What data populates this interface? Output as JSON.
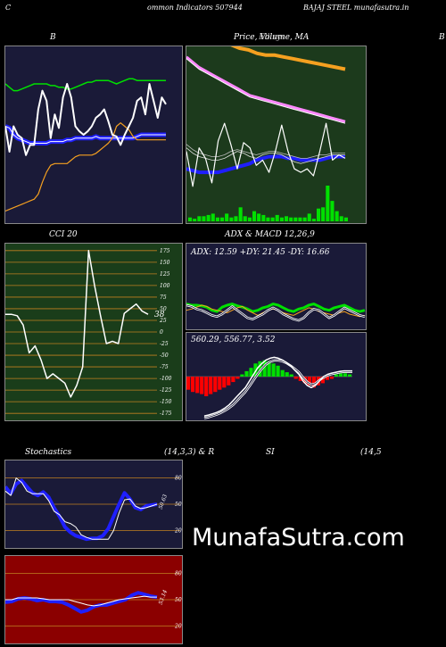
{
  "header": {
    "left": "C",
    "center": "ommon Indicators 507944",
    "right": "BAJAJ STEEL munafasutra.in"
  },
  "titles": {
    "bb": "B",
    "price": "Price,  Volume, MA",
    "price_overlap": "Ellisys",
    "right_edge": "B",
    "cci": "CCI 20",
    "adx_macd": "ADX  & MACD 12,26,9",
    "stoch_left": "Stochastics",
    "stoch_params": "(14,3,3) & R",
    "rsi": "SI",
    "rsi_params": "(14,5"
  },
  "watermark": "MunafaSutra.com",
  "colors": {
    "navy": "#1a1a38",
    "green_panel": "#1c3a1c",
    "cci_bg": "#1a3d1a",
    "rsi_bg": "#8b0000",
    "blue": "#1f1fff",
    "lime": "#00e000",
    "orange": "#f5a020",
    "pink": "#ff88ff",
    "red": "#ff0000",
    "gridline": "#c08020"
  },
  "chart_data": [
    {
      "id": "bollinger",
      "type": "line",
      "title": "B",
      "ylim": [
        0,
        100
      ],
      "series": [
        {
          "values": [
            55,
            54,
            50,
            48,
            47,
            46,
            45,
            45,
            45,
            45,
            45,
            46,
            46,
            46,
            46,
            47,
            47,
            48,
            48,
            48,
            48,
            48,
            49,
            48,
            48,
            48,
            48,
            48,
            48,
            48,
            48,
            48,
            49,
            50,
            50,
            50,
            50,
            50,
            50,
            50
          ]
        },
        {
          "values": [
            80,
            78,
            76,
            76,
            77,
            78,
            79,
            80,
            80,
            80,
            80,
            79,
            79,
            78,
            78,
            77,
            77,
            78,
            79,
            80,
            81,
            81,
            82,
            82,
            82,
            82,
            81,
            80,
            81,
            82,
            83,
            83,
            82,
            82,
            82,
            82,
            82,
            82,
            82,
            82
          ]
        },
        {
          "values": [
            5,
            6,
            7,
            8,
            9,
            10,
            11,
            12,
            15,
            22,
            28,
            32,
            33,
            33,
            33,
            33,
            35,
            37,
            38,
            38,
            38,
            38,
            39,
            41,
            43,
            45,
            48,
            55,
            57,
            55,
            53,
            49,
            47,
            47,
            47,
            47,
            47,
            47,
            47,
            47
          ]
        },
        {
          "values": [
            55,
            40,
            55,
            50,
            48,
            38,
            44,
            44,
            65,
            76,
            70,
            48,
            62,
            54,
            72,
            80,
            72,
            55,
            52,
            50,
            52,
            55,
            60,
            62,
            65,
            58,
            50,
            49,
            44,
            50,
            55,
            60,
            70,
            72,
            62,
            80,
            70,
            60,
            72,
            68
          ]
        }
      ]
    },
    {
      "id": "price_volume",
      "type": "line",
      "title": "Price,  Volume, MA",
      "ylim": [
        0,
        100
      ],
      "series": [
        {
          "values": [
            105,
            103,
            101,
            99,
            98,
            96,
            95,
            95,
            94,
            93,
            92,
            91,
            90,
            89,
            88,
            87
          ]
        },
        {
          "values": [
            94,
            91,
            88,
            86,
            84,
            82,
            80,
            78,
            76,
            74,
            72,
            71,
            70,
            69,
            68,
            67,
            66,
            65,
            64,
            63,
            62,
            61,
            60,
            59,
            58,
            57
          ]
        },
        {
          "values": [
            93,
            90,
            87,
            85,
            83,
            81,
            79,
            77,
            75,
            73,
            71,
            70,
            69,
            68,
            67,
            66,
            65,
            64,
            63,
            62,
            61,
            60,
            59,
            58,
            57,
            56
          ]
        },
        {
          "values": [
            30,
            29,
            28,
            28,
            28,
            28,
            29,
            30,
            31,
            32,
            33,
            35,
            36,
            37,
            37,
            37,
            36,
            36,
            35,
            35,
            35,
            35,
            36,
            37,
            37,
            37
          ]
        },
        {
          "values": [
            42,
            39,
            37,
            36,
            35,
            35,
            36,
            38,
            40,
            39,
            37,
            36,
            38,
            39,
            39,
            38,
            36,
            34,
            33,
            34,
            35,
            36,
            37,
            38,
            38,
            38
          ]
        },
        {
          "values": [
            44,
            41,
            39,
            38,
            37,
            37,
            38,
            40,
            41,
            40,
            39,
            38,
            39,
            40,
            40,
            39,
            38,
            37,
            36,
            36,
            37,
            38,
            38,
            39,
            39,
            39
          ]
        },
        {
          "values": [
            40,
            20,
            42,
            36,
            22,
            46,
            56,
            44,
            30,
            45,
            42,
            32,
            35,
            28,
            40,
            55,
            40,
            30,
            28,
            30,
            26,
            40,
            56,
            35,
            38,
            36
          ]
        }
      ],
      "volume": [
        3,
        2,
        4,
        4,
        5,
        6,
        3,
        3,
        6,
        3,
        4,
        11,
        4,
        3,
        8,
        6,
        5,
        3,
        3,
        5,
        3,
        4,
        3,
        3,
        3,
        3,
        6,
        2,
        10,
        11,
        28,
        16,
        8,
        4,
        3
      ]
    },
    {
      "id": "cci",
      "type": "line",
      "title": "CCI 20",
      "ylim": [
        -190,
        190
      ],
      "yticks": [
        175,
        150,
        125,
        100,
        75,
        50,
        25,
        0,
        -25,
        -50,
        -75,
        -100,
        -125,
        -150,
        -175
      ],
      "last_value_label": "38",
      "values": [
        38,
        38,
        35,
        15,
        -45,
        -30,
        -60,
        -100,
        -90,
        -100,
        -110,
        -140,
        -115,
        -75,
        175,
        100,
        35,
        -25,
        -20,
        -25,
        40,
        50,
        60,
        45,
        38
      ]
    },
    {
      "id": "adx",
      "type": "line",
      "title": "ADX  & MACD 12,26,9",
      "readout": "ADX: 12.59  +DY: 21.45  -DY: 16.66",
      "ylim": [
        0,
        100
      ],
      "series": [
        {
          "values": [
            40,
            38,
            38,
            37,
            35,
            30,
            28,
            35,
            38,
            40,
            37,
            35,
            32,
            28,
            30,
            34,
            36,
            40,
            38,
            34,
            30,
            28,
            32,
            34,
            38,
            40,
            36,
            32,
            30,
            34,
            36,
            38,
            34,
            30,
            28,
            30
          ]
        },
        {
          "values": [
            30,
            32,
            35,
            38,
            36,
            32,
            30,
            28,
            26,
            30,
            34,
            36,
            30,
            26,
            22,
            26,
            30,
            32,
            30,
            26,
            24,
            22,
            26,
            30,
            34,
            32,
            28,
            26,
            24,
            22,
            26,
            28,
            24,
            22,
            20,
            22
          ]
        },
        {
          "values": [
            38,
            36,
            32,
            30,
            26,
            22,
            20,
            24,
            30,
            36,
            30,
            24,
            18,
            16,
            20,
            24,
            30,
            34,
            30,
            24,
            20,
            16,
            14,
            18,
            26,
            32,
            30,
            24,
            18,
            22,
            28,
            34,
            30,
            26,
            22,
            20
          ]
        }
      ]
    },
    {
      "id": "macd",
      "type": "bar",
      "readout": "560.29,  556.77,  3.52",
      "ylim": [
        -100,
        100
      ],
      "histogram": [
        -12,
        -14,
        -15,
        -16,
        -18,
        -16,
        -14,
        -12,
        -10,
        -8,
        -5,
        -2,
        2,
        5,
        8,
        12,
        14,
        15,
        14,
        12,
        10,
        6,
        4,
        2,
        -2,
        -4,
        -6,
        -8,
        -10,
        -8,
        -6,
        -3,
        -2,
        2,
        3,
        3,
        2
      ],
      "series": [
        {
          "values": [
            -90,
            -88,
            -85,
            -82,
            -78,
            -72,
            -65,
            -55,
            -45,
            -35,
            -25,
            -10,
            5,
            20,
            30,
            38,
            42,
            44,
            42,
            38,
            32,
            25,
            15,
            5,
            -10,
            -20,
            -25,
            -20,
            -10,
            0,
            5,
            8,
            10,
            12,
            13,
            13,
            13
          ]
        },
        {
          "values": [
            -95,
            -93,
            -90,
            -87,
            -83,
            -78,
            -72,
            -65,
            -55,
            -45,
            -35,
            -22,
            -8,
            6,
            18,
            28,
            34,
            37,
            37,
            35,
            31,
            25,
            18,
            10,
            -2,
            -12,
            -18,
            -16,
            -8,
            -2,
            3,
            6,
            8,
            10,
            11,
            11,
            11
          ]
        }
      ]
    },
    {
      "id": "stochastics",
      "type": "line",
      "title": "Stochastics (14,3,3)",
      "ylim": [
        0,
        100
      ],
      "yticks": [
        80,
        50,
        20
      ],
      "last_value_label": "50.63",
      "series": [
        {
          "values": [
            65,
            60,
            80,
            75,
            65,
            62,
            62,
            62,
            54,
            42,
            38,
            30,
            28,
            24,
            15,
            12,
            10,
            10,
            10,
            10,
            20,
            40,
            55,
            56,
            48,
            45,
            46,
            48,
            50
          ]
        },
        {
          "values": [
            70,
            62,
            73,
            77,
            70,
            63,
            60,
            64,
            58,
            46,
            36,
            24,
            18,
            14,
            12,
            10,
            11,
            11,
            14,
            22,
            36,
            50,
            63,
            56,
            46,
            44,
            48,
            49,
            50
          ]
        }
      ]
    },
    {
      "id": "rsi",
      "type": "line",
      "title": "RSI (14,5)",
      "ylim": [
        0,
        100
      ],
      "yticks": [
        80,
        50,
        20
      ],
      "last_value_label": "53.14",
      "series": [
        {
          "values": [
            47,
            48,
            51,
            52,
            51,
            49,
            50,
            48,
            48,
            47,
            44,
            40,
            36,
            38,
            42,
            44,
            44,
            46,
            48,
            50,
            55,
            58,
            56,
            54,
            53
          ]
        },
        {
          "values": [
            50,
            50,
            52,
            52,
            52,
            52,
            51,
            50,
            50,
            50,
            50,
            48,
            46,
            44,
            43,
            44,
            46,
            48,
            50,
            51,
            52,
            53,
            54,
            53,
            53
          ]
        }
      ]
    }
  ]
}
